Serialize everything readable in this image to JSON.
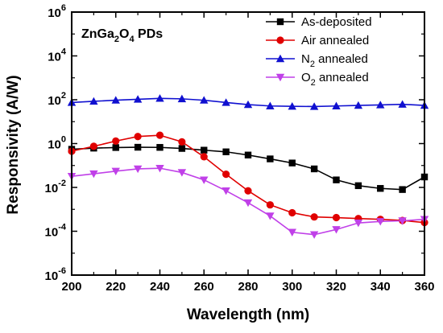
{
  "chart_data": {
    "type": "line",
    "annotation": {
      "main": "ZnGa",
      "sub1": "2",
      "mid": "O",
      "sub2": "4",
      "tail": " PDs"
    },
    "xlabel": "Wavelength (nm)",
    "ylabel": "Responsivity (A/W)",
    "xlim": [
      200,
      360
    ],
    "ylim": [
      -6,
      6
    ],
    "yscale": "log",
    "xticks": [
      200,
      220,
      240,
      260,
      280,
      300,
      320,
      340,
      360
    ],
    "yticks": [
      {
        "base": "10",
        "exp": "-6",
        "value": -6
      },
      {
        "base": "10",
        "exp": "-4",
        "value": -4
      },
      {
        "base": "10",
        "exp": "-2",
        "value": -2
      },
      {
        "base": "10",
        "exp": "0",
        "value": 0
      },
      {
        "base": "10",
        "exp": "2",
        "value": 2
      },
      {
        "base": "10",
        "exp": "4",
        "value": 4
      },
      {
        "base": "10",
        "exp": "6",
        "value": 6
      }
    ],
    "legend_position": "top-right",
    "x": [
      200,
      210,
      220,
      230,
      240,
      250,
      260,
      270,
      280,
      290,
      300,
      310,
      320,
      330,
      340,
      350,
      360
    ],
    "series": [
      {
        "name": "As-deposited",
        "name_parts": {
          "pre": "As-deposited",
          "sub": "",
          "post": ""
        },
        "color": "#000000",
        "marker": "square",
        "values": [
          0.55,
          0.62,
          0.66,
          0.68,
          0.67,
          0.6,
          0.5,
          0.42,
          0.3,
          0.2,
          0.13,
          0.07,
          0.022,
          0.012,
          0.009,
          0.008,
          0.03
        ]
      },
      {
        "name": "Air annealed",
        "name_parts": {
          "pre": "Air annealed",
          "sub": "",
          "post": ""
        },
        "color": "#e00000",
        "marker": "circle",
        "values": [
          0.45,
          0.75,
          1.3,
          2.1,
          2.4,
          1.2,
          0.25,
          0.04,
          0.007,
          0.0016,
          0.0007,
          0.00045,
          0.00042,
          0.00038,
          0.00035,
          0.00031,
          0.00025
        ]
      },
      {
        "name": "N2 annealed",
        "name_parts": {
          "pre": "N",
          "sub": "2",
          "post": " annealed"
        },
        "color": "#1010d0",
        "marker": "triangle-up",
        "values": [
          75,
          85,
          95,
          105,
          115,
          110,
          95,
          75,
          60,
          52,
          50,
          49,
          52,
          55,
          58,
          62,
          55
        ]
      },
      {
        "name": "O2 annealed",
        "name_parts": {
          "pre": "O",
          "sub": "2",
          "post": " annealed"
        },
        "color": "#c040e8",
        "marker": "triangle-down",
        "values": [
          0.032,
          0.042,
          0.055,
          0.07,
          0.075,
          0.048,
          0.022,
          0.007,
          0.002,
          0.0005,
          9e-05,
          7e-05,
          0.00012,
          0.00024,
          0.00028,
          0.0003,
          0.00035
        ]
      }
    ]
  }
}
